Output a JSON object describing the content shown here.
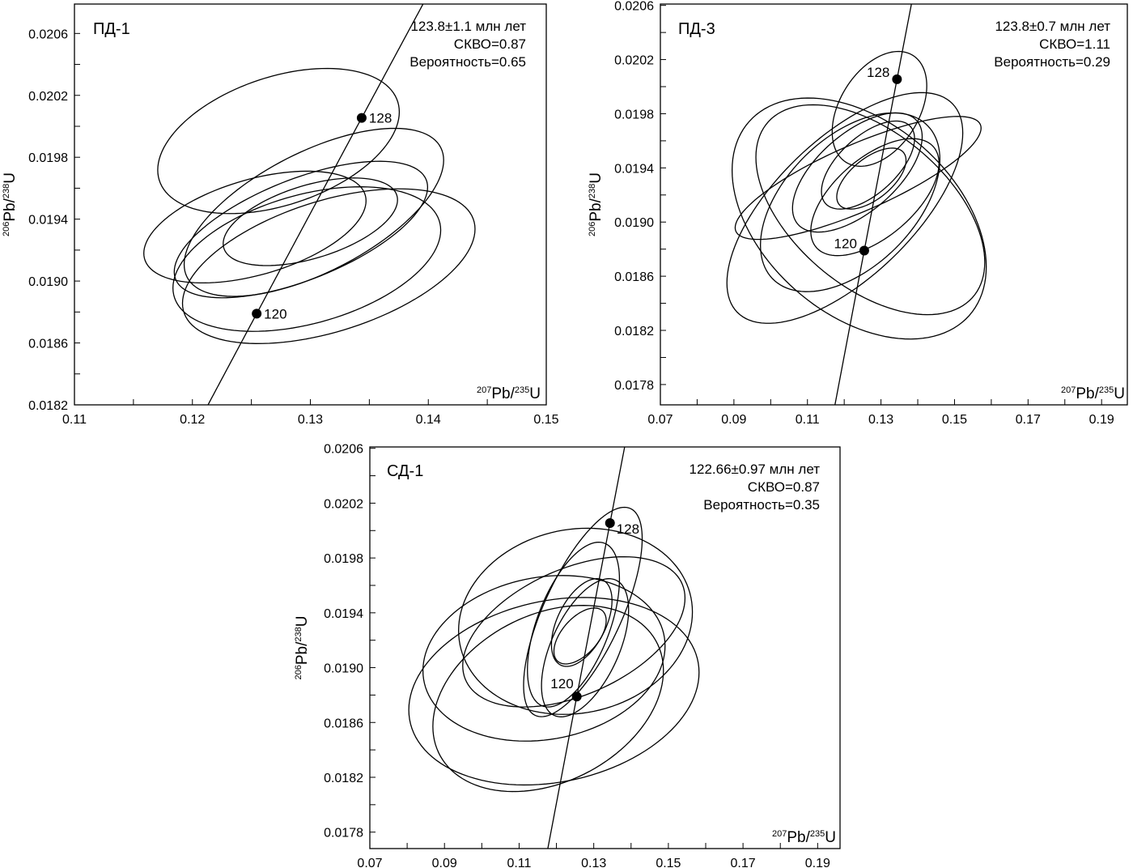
{
  "chart_data": [
    {
      "type": "scatter",
      "title": "ПД-1",
      "stats": [
        "123.8±1.1 млн лет",
        "СКВО=0.87",
        "Вероятность=0.65"
      ],
      "x_label": {
        "sup1": "207",
        "base1": "Pb/",
        "sup2": "235",
        "base2": "U"
      },
      "y_label": {
        "sup1": "206",
        "base1": "Pb/",
        "sup2": "238",
        "base2": "U"
      },
      "xlim": [
        0.11,
        0.15
      ],
      "ylim": [
        0.0182,
        0.02079
      ],
      "xticks": [
        "0.11",
        "0.12",
        "0.13",
        "0.14",
        "0.15"
      ],
      "x_minor_step": 0.005,
      "yticks": [
        "0.0182",
        "0.0186",
        "0.0190",
        "0.0194",
        "0.0198",
        "0.0202",
        "0.0206"
      ],
      "y_minor_step": 0.0002,
      "concordia_ages_ma": [
        "120",
        "128"
      ],
      "ellipses": [
        {
          "x": 0.1273,
          "y": 0.019905,
          "sx": 0.01024,
          "sy": 0.000469,
          "rho": 0.4
        },
        {
          "x": 0.1303,
          "y": 0.019444,
          "sx": 0.011,
          "sy": 0.000543,
          "rho": 0.62
        },
        {
          "x": 0.1253,
          "y": 0.019349,
          "sx": 0.00942,
          "sy": 0.000361,
          "rho": 0.47
        },
        {
          "x": 0.1292,
          "y": 0.019333,
          "sx": 0.01074,
          "sy": 0.000441,
          "rho": 0.62
        },
        {
          "x": 0.13,
          "y": 0.019383,
          "sx": 0.00739,
          "sy": 0.000283,
          "rho": 0.5
        },
        {
          "x": 0.1297,
          "y": 0.019142,
          "sx": 0.01135,
          "sy": 0.000467,
          "rho": 0.4
        },
        {
          "x": 0.13156,
          "y": 0.019096,
          "sx": 0.0124,
          "sy": 0.0005,
          "rho": 0.48
        }
      ],
      "colors": {
        "line": "#000000",
        "background": "#ffffff"
      }
    },
    {
      "type": "scatter",
      "title": "ПД-3",
      "stats": [
        "123.8±0.7 млн лет",
        "СКВО=1.11",
        "Вероятность=0.29"
      ],
      "x_label": {
        "sup1": "207",
        "base1": "Pb/",
        "sup2": "235",
        "base2": "U"
      },
      "y_label": {
        "sup1": "206",
        "base1": "Pb/",
        "sup2": "238",
        "base2": "U"
      },
      "xlim": [
        0.07,
        0.197
      ],
      "ylim": [
        0.01765,
        0.02061
      ],
      "xticks": [
        "0.07",
        "0.09",
        "0.11",
        "0.13",
        "0.15",
        "0.17",
        "0.19"
      ],
      "x_minor_step": 0.01,
      "yticks": [
        "0.0178",
        "0.0182",
        "0.0186",
        "0.0190",
        "0.0194",
        "0.0198",
        "0.0202",
        "0.0206"
      ],
      "y_minor_step": 0.0002,
      "concordia_ages_ma": [
        "120",
        "128"
      ],
      "ellipses": [
        {
          "x": 0.12959,
          "y": 0.019836,
          "sx": 0.01286,
          "sy": 0.000424,
          "rho": 0.4
        },
        {
          "x": 0.12378,
          "y": 0.019326,
          "sx": 0.03344,
          "sy": 0.000454,
          "rho": 0.81
        },
        {
          "x": 0.12407,
          "y": 0.019026,
          "sx": 0.03456,
          "sy": 0.00089,
          "rho": -0.4
        },
        {
          "x": 0.1271,
          "y": 0.019091,
          "sx": 0.03112,
          "sy": 0.000775,
          "rho": -0.5
        },
        {
          "x": 0.12017,
          "y": 0.019104,
          "sx": 0.03207,
          "sy": 0.000852,
          "rho": 0.65
        },
        {
          "x": 0.12162,
          "y": 0.019146,
          "sx": 0.0244,
          "sy": 0.00066,
          "rho": 0.48
        },
        {
          "x": 0.12357,
          "y": 0.019366,
          "sx": 0.01763,
          "sy": 0.00044,
          "rho": 0.6
        },
        {
          "x": 0.12834,
          "y": 0.019184,
          "sx": 0.01743,
          "sy": 0.000432,
          "rho": 0.58
        },
        {
          "x": 0.12647,
          "y": 0.019421,
          "sx": 0.01266,
          "sy": 0.000325,
          "rho": 0.6
        },
        {
          "x": 0.12739,
          "y": 0.019321,
          "sx": 0.00942,
          "sy": 0.000225,
          "rho": 0.6
        }
      ],
      "colors": {
        "line": "#000000",
        "background": "#ffffff"
      }
    },
    {
      "type": "scatter",
      "title": "СД-1",
      "stats": [
        "122.66±0.97 млн лет",
        "СКВО=0.87",
        "Вероятность=0.35"
      ],
      "x_label": {
        "sup1": "207",
        "base1": "Pb/",
        "sup2": "235",
        "base2": "U"
      },
      "y_label": {
        "sup1": "206",
        "base1": "Pb/",
        "sup2": "238",
        "base2": "U"
      },
      "xlim": [
        0.07,
        0.196
      ],
      "ylim": [
        0.01768,
        0.02061
      ],
      "xticks": [
        "0.07",
        "0.09",
        "0.11",
        "0.13",
        "0.15",
        "0.17",
        "0.19"
      ],
      "x_minor_step": 0.01,
      "yticks": [
        "0.0178",
        "0.0182",
        "0.0186",
        "0.0190",
        "0.0194",
        "0.0198",
        "0.0202",
        "0.0206"
      ],
      "y_minor_step": 0.0002,
      "concordia_ages_ma": [
        "120",
        "128"
      ],
      "ellipses": [
        {
          "x": 0.12709,
          "y": 0.019406,
          "sx": 0.01589,
          "sy": 0.000764,
          "rho": 0.7
        },
        {
          "x": 0.12456,
          "y": 0.019314,
          "sx": 0.01233,
          "sy": 0.000601,
          "rho": 0.55
        },
        {
          "x": 0.12767,
          "y": 0.019145,
          "sx": 0.01167,
          "sy": 0.000504,
          "rho": 0.55
        },
        {
          "x": 0.12678,
          "y": 0.019329,
          "sx": 0.00811,
          "sy": 0.00032,
          "rho": 0.5
        },
        {
          "x": 0.12633,
          "y": 0.019231,
          "sx": 0.007,
          "sy": 0.000204,
          "rho": 0.55
        },
        {
          "x": 0.12511,
          "y": 0.019338,
          "sx": 0.03133,
          "sy": 0.000679,
          "rho": 0.1
        },
        {
          "x": 0.12467,
          "y": 0.019261,
          "sx": 0.02978,
          "sy": 0.000548,
          "rho": 0.45
        },
        {
          "x": 0.11667,
          "y": 0.019068,
          "sx": 0.03244,
          "sy": 0.000604,
          "rho": 0.15
        },
        {
          "x": 0.11933,
          "y": 0.018828,
          "sx": 0.03889,
          "sy": 0.000684,
          "rho": 0.2
        },
        {
          "x": 0.11778,
          "y": 0.018775,
          "sx": 0.03089,
          "sy": 0.000679,
          "rho": 0.3
        }
      ],
      "colors": {
        "line": "#000000",
        "background": "#ffffff"
      }
    }
  ]
}
